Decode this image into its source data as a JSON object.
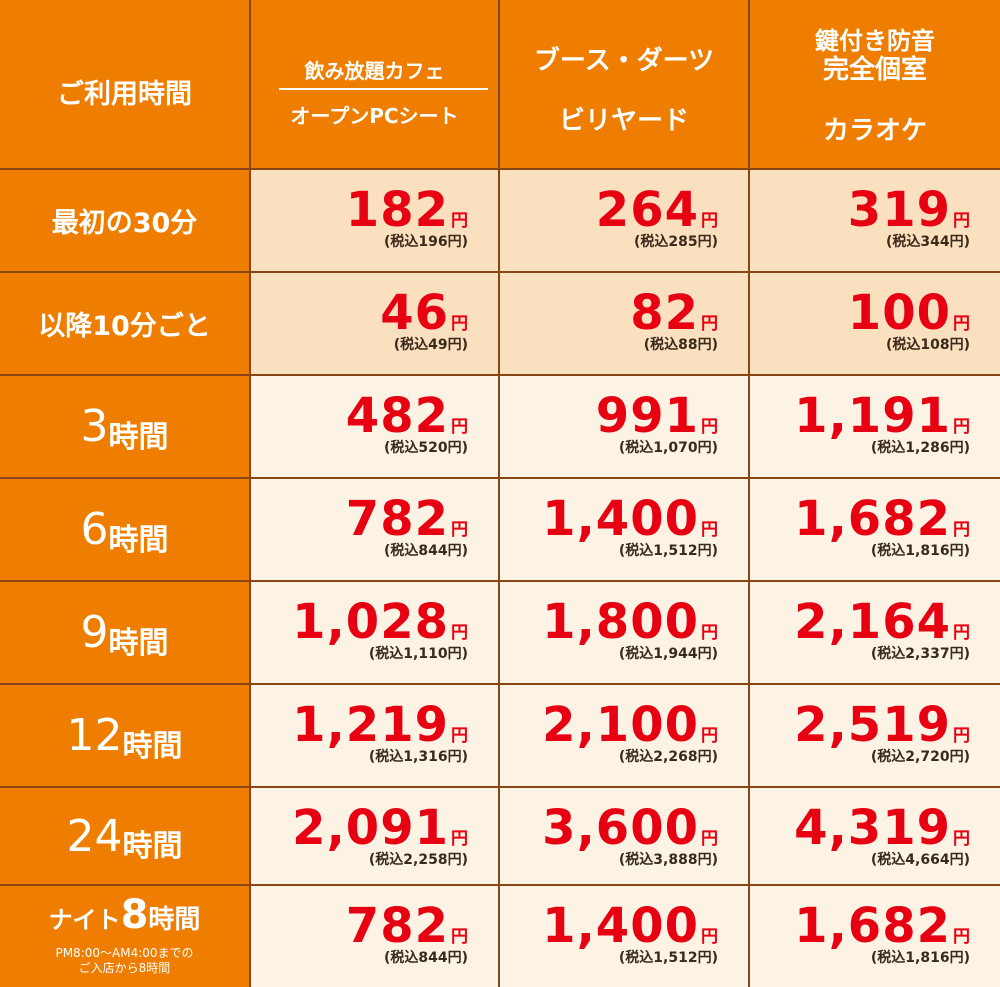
{
  "header": {
    "time_label": "ご利用時間",
    "col1_line1": "飲み放題カフェ",
    "col1_line2": "オープンPCシート",
    "col2_line1": "ブース・ダーツ",
    "col2_line2": "ビリヤード",
    "col3_line1": "鍵付き防音",
    "col3_line2": "完全個室",
    "col3_line3": "カラオケ"
  },
  "yen": "円",
  "rows": [
    {
      "label": "最初の30分",
      "prices": [
        {
          "price": "182",
          "tax": "(税込196円)"
        },
        {
          "price": "264",
          "tax": "(税込285円)"
        },
        {
          "price": "319",
          "tax": "(税込344円)"
        }
      ]
    },
    {
      "label": "以降10分ごと",
      "prices": [
        {
          "price": "46",
          "tax": "(税込49円)"
        },
        {
          "price": "82",
          "tax": "(税込88円)"
        },
        {
          "price": "100",
          "tax": "(税込108円)"
        }
      ]
    },
    {
      "num": "3",
      "unit": "時間",
      "prices": [
        {
          "price": "482",
          "tax": "(税込520円)"
        },
        {
          "price": "991",
          "tax": "(税込1,070円)"
        },
        {
          "price": "1,191",
          "tax": "(税込1,286円)"
        }
      ]
    },
    {
      "num": "6",
      "unit": "時間",
      "prices": [
        {
          "price": "782",
          "tax": "(税込844円)"
        },
        {
          "price": "1,400",
          "tax": "(税込1,512円)"
        },
        {
          "price": "1,682",
          "tax": "(税込1,816円)"
        }
      ]
    },
    {
      "num": "9",
      "unit": "時間",
      "prices": [
        {
          "price": "1,028",
          "tax": "(税込1,110円)"
        },
        {
          "price": "1,800",
          "tax": "(税込1,944円)"
        },
        {
          "price": "2,164",
          "tax": "(税込2,337円)"
        }
      ]
    },
    {
      "num": "12",
      "unit": "時間",
      "prices": [
        {
          "price": "1,219",
          "tax": "(税込1,316円)"
        },
        {
          "price": "2,100",
          "tax": "(税込2,268円)"
        },
        {
          "price": "2,519",
          "tax": "(税込2,720円)"
        }
      ]
    },
    {
      "num": "24",
      "unit": "時間",
      "prices": [
        {
          "price": "2,091",
          "tax": "(税込2,258円)"
        },
        {
          "price": "3,600",
          "tax": "(税込3,888円)"
        },
        {
          "price": "4,319",
          "tax": "(税込4,664円)"
        }
      ]
    },
    {
      "night_prefix": "ナイト",
      "num": "8",
      "unit": "時間",
      "note1": "PM8:00～AM4:00までの",
      "note2": "ご入店から8時間",
      "prices": [
        {
          "price": "782",
          "tax": "(税込844円)"
        },
        {
          "price": "1,400",
          "tax": "(税込1,512円)"
        },
        {
          "price": "1,682",
          "tax": "(税込1,816円)"
        }
      ]
    }
  ],
  "colors": {
    "header_bg": "#ee7d00",
    "accent_bg": "#fbe0c0",
    "body_bg": "#fdf3e5",
    "price": "#e60012"
  }
}
